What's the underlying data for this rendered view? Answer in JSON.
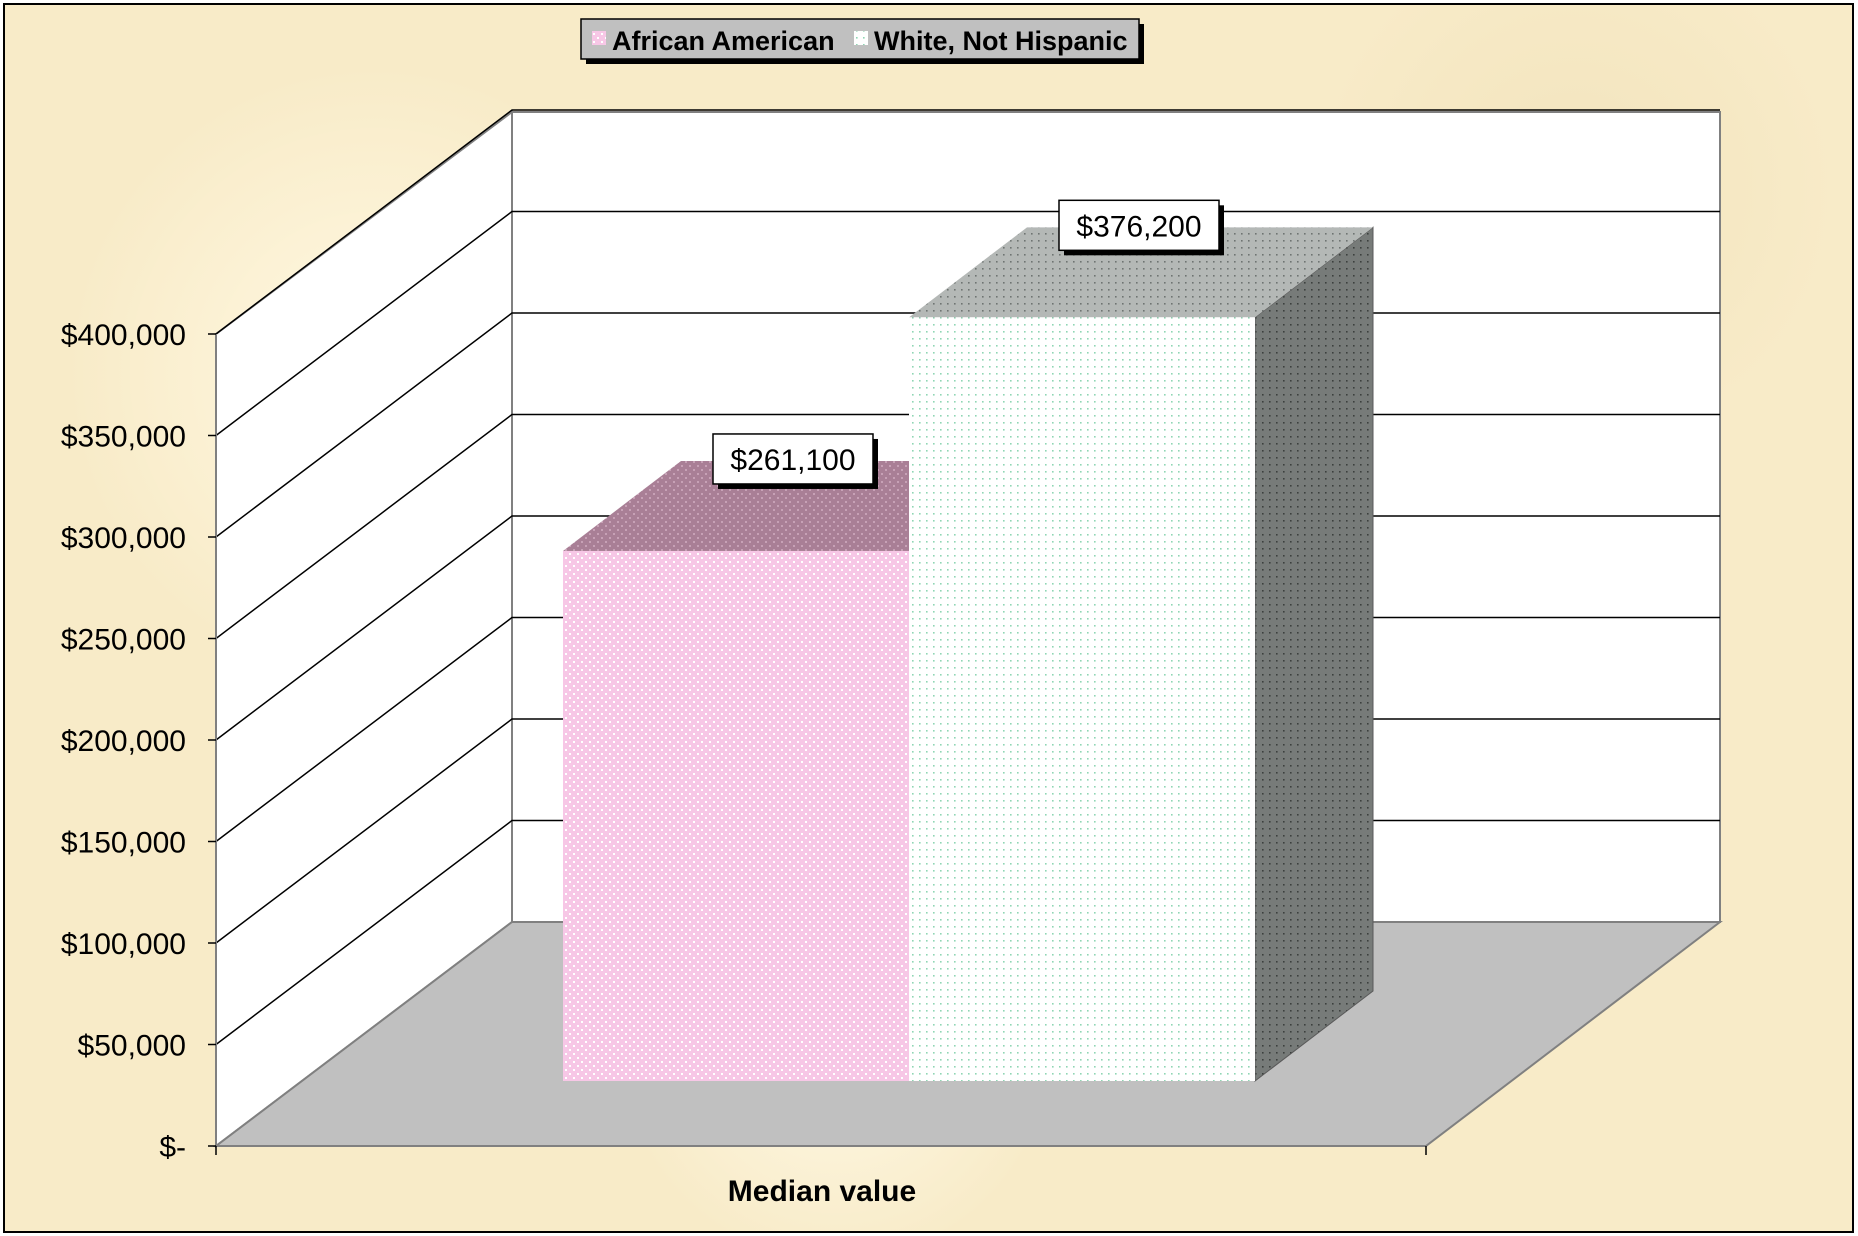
{
  "colors": {
    "background": "#f8ebc8",
    "wall": "#ffffff",
    "floor": "#c0c0c0",
    "gridline": "#000000",
    "series_african_american": "#f7c7e6",
    "series_white_not_hispanic": "#8fd6b4"
  },
  "chart_data": {
    "type": "bar",
    "categories": [
      "Median value"
    ],
    "series": [
      {
        "name": "African American",
        "values": [
          261100
        ],
        "label": "$261,100"
      },
      {
        "name": "White, Not Hispanic",
        "values": [
          376200
        ],
        "label": "$376,200"
      }
    ],
    "xlabel": "Median value",
    "ylabel": "",
    "ylim": [
      0,
      400000
    ],
    "yticks": [
      0,
      50000,
      100000,
      150000,
      200000,
      250000,
      300000,
      350000,
      400000
    ],
    "ytick_labels": [
      "$-",
      "$50,000",
      "$100,000",
      "$150,000",
      "$200,000",
      "$250,000",
      "$300,000",
      "$350,000",
      "$400,000"
    ],
    "grid": true,
    "legend_position": "top"
  }
}
